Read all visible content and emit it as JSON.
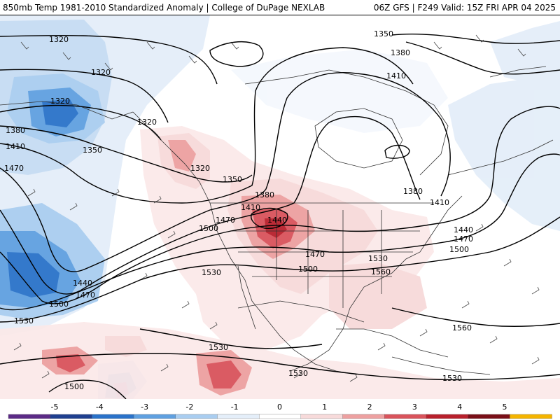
{
  "header": {
    "title_left": "850mb Temp 1981-2010 Standardized Anomaly | College of DuPage NEXLAB",
    "title_right": "06Z GFS | F249 Valid: 15Z FRI APR 04 2025"
  },
  "contour_labels": [
    "1320",
    "1320",
    "1320",
    "1320",
    "1320",
    "1350",
    "1350",
    "1350",
    "1380",
    "1380",
    "1380",
    "1380",
    "1410",
    "1410",
    "1410",
    "1410",
    "1440",
    "1440",
    "1440",
    "1470",
    "1470",
    "1470",
    "1470",
    "1470",
    "1500",
    "1500",
    "1500",
    "1500",
    "1500",
    "1530",
    "1530",
    "1530",
    "1530",
    "1530",
    "1530",
    "1560",
    "1560"
  ],
  "colorbar": {
    "ticks": [
      "-5",
      "-4",
      "-3",
      "-2",
      "-1",
      "0",
      "1",
      "2",
      "3",
      "4",
      "5"
    ],
    "colors": [
      "#5b2a86",
      "#1f3f8f",
      "#2a72c9",
      "#5fa0e0",
      "#a9cdf0",
      "#e4eef9",
      "#ffffff",
      "#f7dada",
      "#eda0a0",
      "#d9535b",
      "#b8202c",
      "#7a0f18",
      "#f4b400"
    ]
  }
}
